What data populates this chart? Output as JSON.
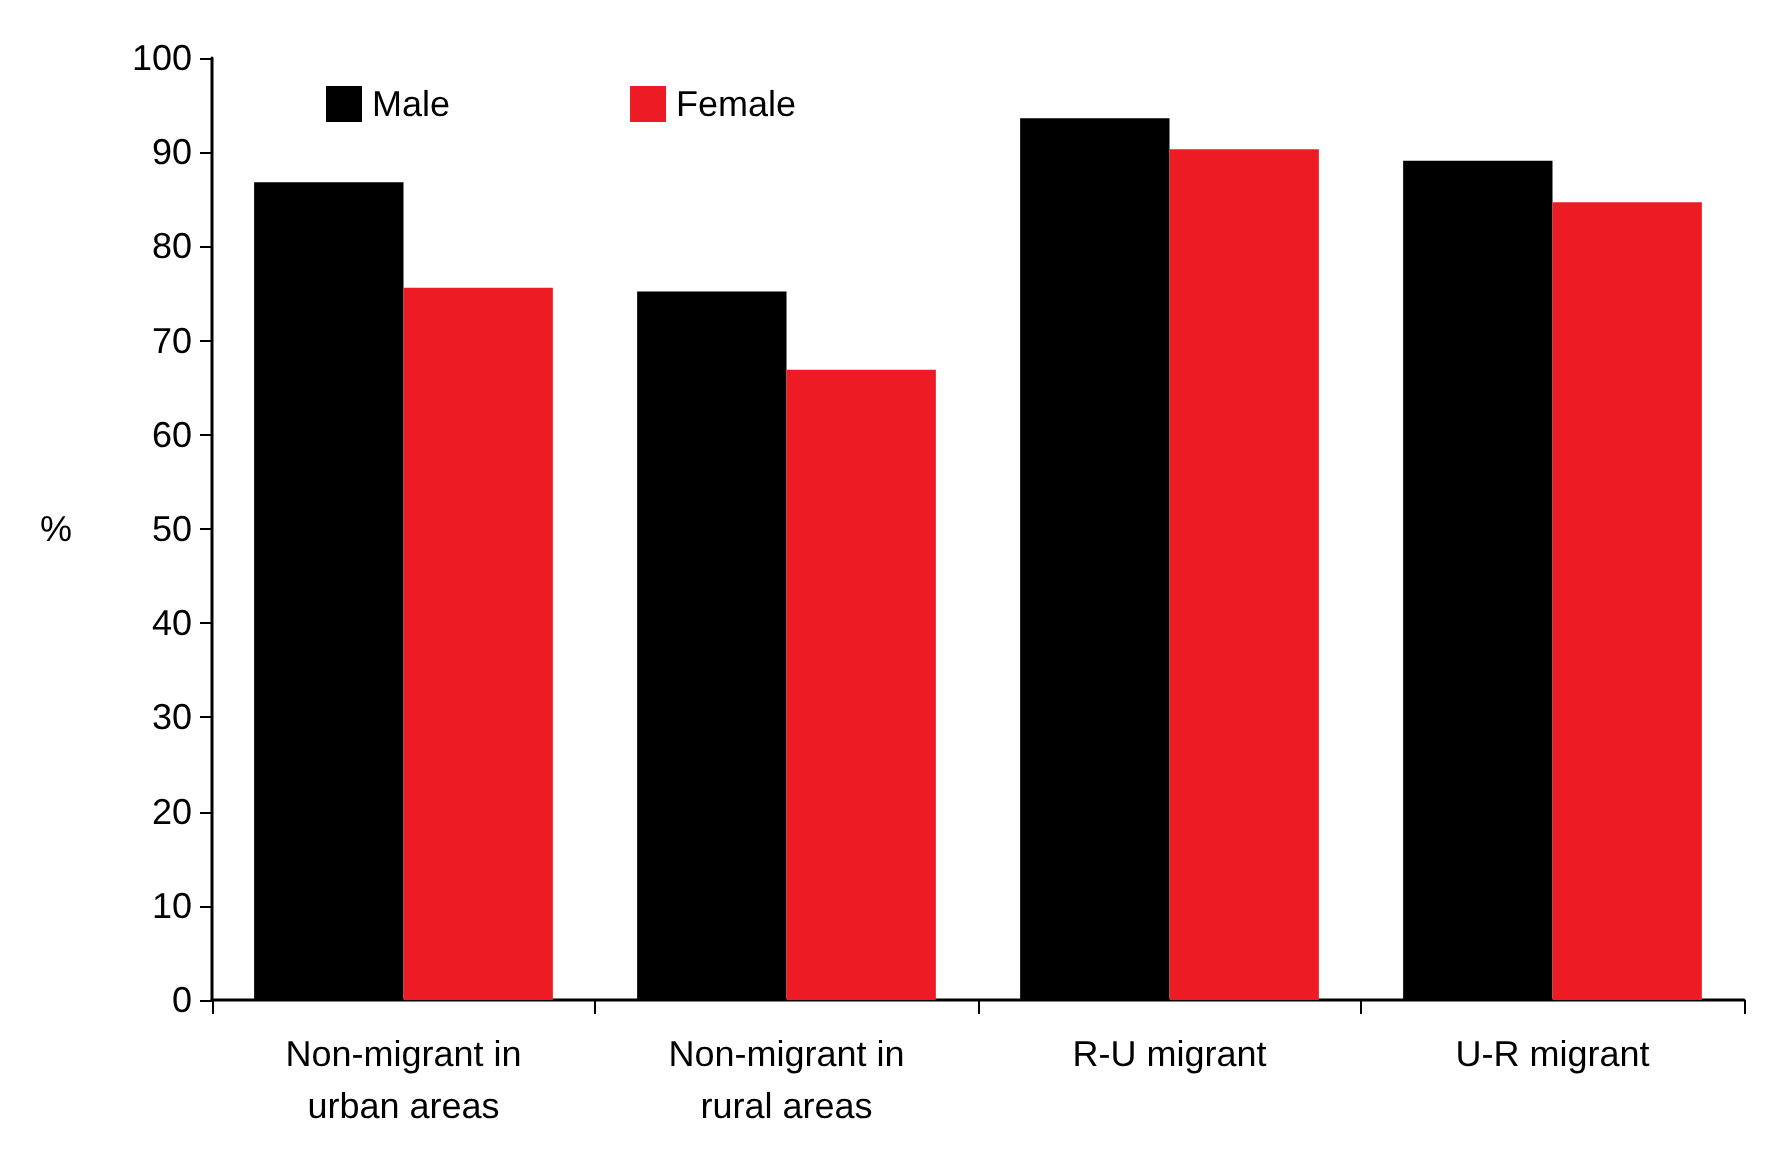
{
  "chart_data": {
    "type": "bar",
    "ylabel": "%",
    "categories": [
      "Non-migrant in\nurban areas",
      "Non-migrant in\nrural areas",
      "R-U migrant",
      "U-R migrant"
    ],
    "series": [
      {
        "name": "Male",
        "color": "#000000",
        "values": [
          86.8,
          75.2,
          93.6,
          89.1
        ]
      },
      {
        "name": "Female",
        "color": "#ed1c24",
        "values": [
          75.6,
          66.9,
          90.3,
          84.7
        ]
      }
    ],
    "ylim": [
      0,
      100
    ],
    "yticks": [
      0,
      10,
      20,
      30,
      40,
      50,
      60,
      70,
      80,
      90,
      100
    ],
    "grid": false,
    "legend": "top left"
  }
}
